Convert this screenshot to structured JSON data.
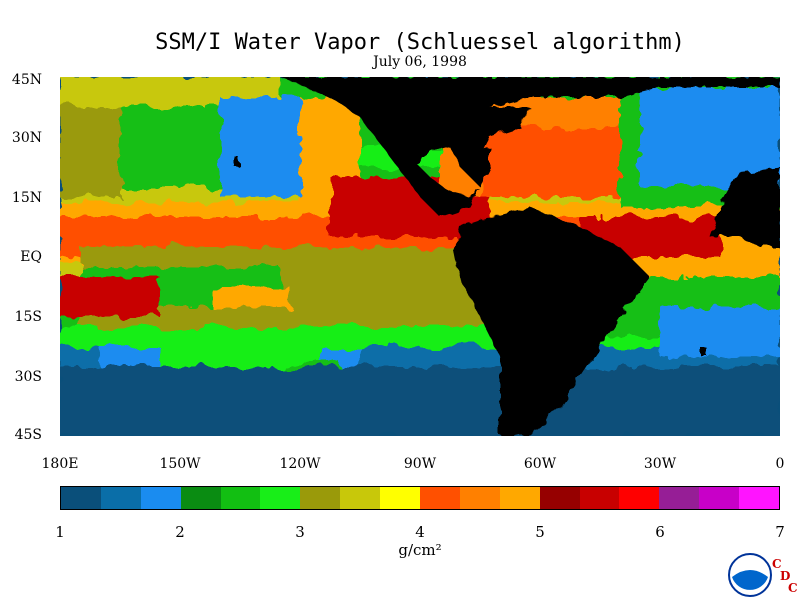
{
  "title": "SSM/I Water Vapor (Schluessel algorithm)",
  "date": "July 06, 1998",
  "lat_labels": [
    "45N",
    "30N",
    "15N",
    "EQ",
    "15S",
    "30S",
    "45S"
  ],
  "lon_labels": [
    "180E",
    "150W",
    "120W",
    "90W",
    "60W",
    "30W",
    "0"
  ],
  "colorbar": {
    "colors": [
      "#0a4f7a",
      "#0a6ea8",
      "#1a8cf0",
      "#0a8c12",
      "#12bf12",
      "#18ee18",
      "#9a9a0a",
      "#c8c80a",
      "#ffff00",
      "#ff5000",
      "#ff8000",
      "#ffa800",
      "#960000",
      "#c80000",
      "#ff0000",
      "#961e96",
      "#c800c8",
      "#ff14ff"
    ],
    "tick_labels": [
      "1",
      "2",
      "3",
      "4",
      "5",
      "6",
      "7"
    ],
    "unit": "g/cm²"
  },
  "logo": {
    "letters": [
      "C",
      "D",
      "C"
    ],
    "emblem": "noaa-emblem"
  },
  "map_icon": "world-water-vapor-map"
}
